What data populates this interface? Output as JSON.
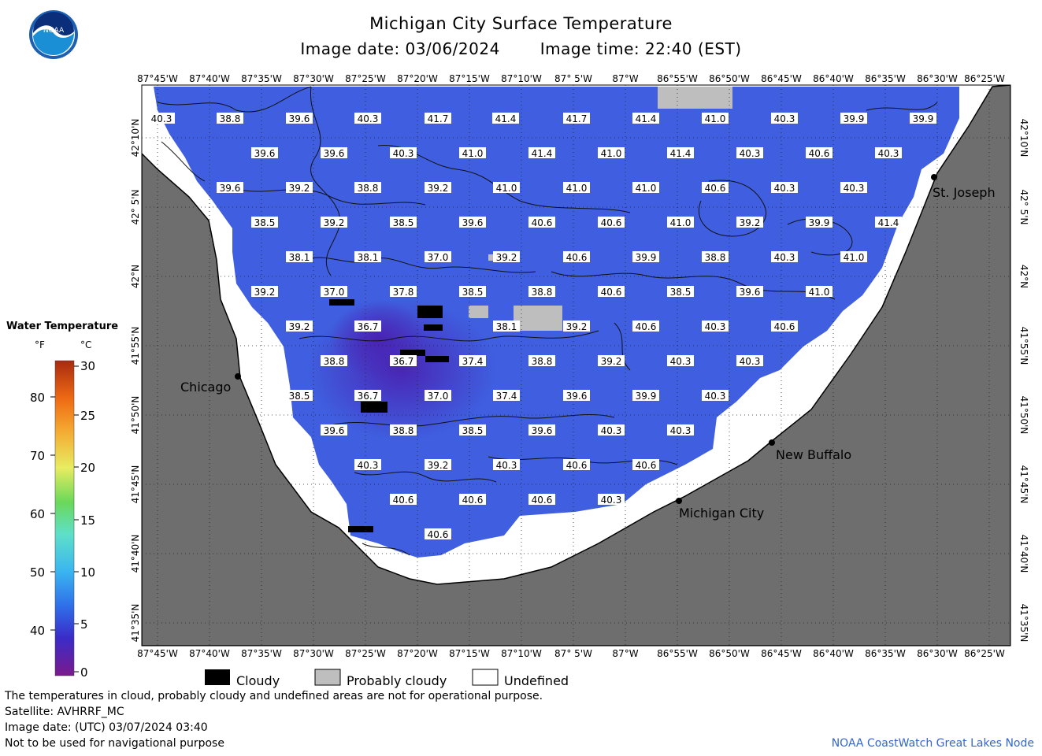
{
  "header": {
    "title": "Michigan City Surface Temperature",
    "image_date": "Image date: 03/06/2024",
    "image_time": "Image time: 22:40 (EST)"
  },
  "logo": {
    "text": "NOAA",
    "icon": "noaa-logo-icon"
  },
  "axes": {
    "lon_labels": [
      "87°45'W",
      "87°40'W",
      "87°35'W",
      "87°30'W",
      "87°25'W",
      "87°20'W",
      "87°15'W",
      "87°10'W",
      "87° 5'W",
      "87°W",
      "86°55'W",
      "86°50'W",
      "86°45'W",
      "86°40'W",
      "86°35'W",
      "86°30'W",
      "86°25'W"
    ],
    "lat_labels": [
      "42°10'N",
      "42° 5'N",
      "42°N",
      "41°55'N",
      "41°50'N",
      "41°45'N",
      "41°40'N",
      "41°35'N"
    ]
  },
  "cities": [
    {
      "name": "Chicago"
    },
    {
      "name": "St. Joseph"
    },
    {
      "name": "New Buffalo"
    },
    {
      "name": "Michigan City"
    }
  ],
  "temperature_labels": [
    [
      "40.3",
      "38.8",
      "39.6",
      "40.3",
      "41.7",
      "41.4",
      "41.7",
      "41.4",
      "41.0",
      "40.3",
      "39.9",
      "39.9"
    ],
    [
      "39.6",
      "39.6",
      "40.3",
      "41.0",
      "41.4",
      "41.0",
      "41.4",
      "40.3",
      "40.6",
      "40.3"
    ],
    [
      "39.6",
      "39.2",
      "38.8",
      "39.2",
      "41.0",
      "41.0",
      "41.0",
      "40.6",
      "40.3",
      "40.3"
    ],
    [
      "38.5",
      "39.2",
      "38.5",
      "39.6",
      "40.6",
      "40.6",
      "41.0",
      "39.2",
      "39.9",
      "41.4"
    ],
    [
      "38.1",
      "38.1",
      "37.0",
      "39.2",
      "40.6",
      "39.9",
      "38.8",
      "40.3",
      "41.0"
    ],
    [
      "39.2",
      "37.0",
      "37.8",
      "38.5",
      "38.8",
      "40.6",
      "38.5",
      "39.6",
      "41.0"
    ],
    [
      "39.2",
      "36.7",
      "38.1",
      "39.2",
      "40.6",
      "40.3",
      "40.6"
    ],
    [
      "38.8",
      "36.7",
      "37.4",
      "38.8",
      "39.2",
      "40.3",
      "40.3"
    ],
    [
      "38.5",
      "36.7",
      "37.0",
      "37.4",
      "39.6",
      "39.9",
      "40.3"
    ],
    [
      "39.6",
      "38.8",
      "38.5",
      "39.6",
      "40.3",
      "40.3"
    ],
    [
      "40.3",
      "39.2",
      "40.3",
      "40.6",
      "40.6"
    ],
    [
      "40.6",
      "40.6",
      "40.6",
      "40.3"
    ],
    [
      "40.6"
    ]
  ],
  "legend": {
    "title": "Water Temperature",
    "unit_f": "°F",
    "unit_c": "°C",
    "f_ticks": [
      "80",
      "70",
      "60",
      "50",
      "40"
    ],
    "c_ticks": [
      "30",
      "25",
      "20",
      "15",
      "10",
      "5",
      "0"
    ]
  },
  "key": {
    "cloudy": "Cloudy",
    "probably_cloudy": "Probably cloudy",
    "undefined": "Undefined"
  },
  "footer": {
    "disclaimer": "The temperatures in cloud, probably cloudy and undefined areas are not for operational purpose.",
    "satellite": "Satellite: AVHRRF_MC",
    "utc_date": "Image date: (UTC) 03/07/2024  03:40",
    "nav_warning": "Not to be used for navigational purpose",
    "credit": "NOAA CoastWatch Great Lakes Node"
  },
  "colors": {
    "water": "#3f5fe0",
    "water_cold": "#4a30c0",
    "land": "#6e6e6e",
    "cloudy": "#000000",
    "probably_cloudy": "#bebebe",
    "undefined": "#ffffff"
  }
}
